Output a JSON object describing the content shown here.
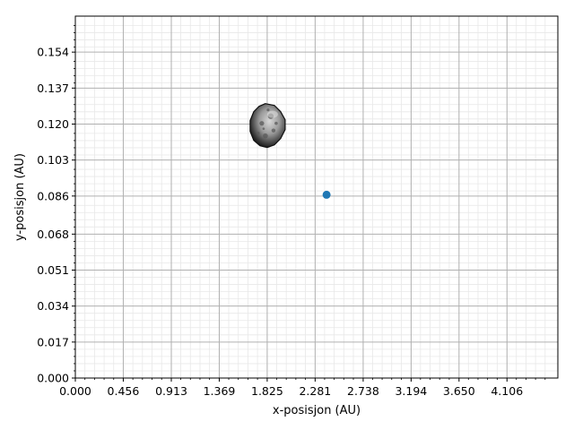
{
  "chart_data": {
    "type": "scatter",
    "title": "",
    "xlabel": "x-posisjon (AU)",
    "ylabel": "y-posisjon (AU)",
    "xlim": [
      0.0,
      4.59
    ],
    "ylim": [
      0.0,
      0.171
    ],
    "xticks": [
      0.0,
      0.456,
      0.913,
      1.369,
      1.825,
      2.281,
      2.738,
      3.194,
      3.65,
      4.106
    ],
    "xtick_labels": [
      "0.000",
      "0.456",
      "0.913",
      "1.369",
      "1.825",
      "2.281",
      "2.738",
      "3.194",
      "3.650",
      "4.106"
    ],
    "yticks": [
      0.0,
      0.017,
      0.034,
      0.051,
      0.068,
      0.086,
      0.103,
      0.12,
      0.137,
      0.154
    ],
    "ytick_labels": [
      "0.000",
      "0.017",
      "0.034",
      "0.051",
      "0.068",
      "0.086",
      "0.103",
      "0.120",
      "0.137",
      "0.154"
    ],
    "minor_per_major": 5,
    "grid": true,
    "series": [
      {
        "points": [
          {
            "x": 2.39,
            "y": 0.0866
          }
        ],
        "color": "#1f77b4"
      }
    ],
    "asteroid": {
      "x": 1.825,
      "y": 0.1195,
      "description": "asteroid image"
    }
  }
}
